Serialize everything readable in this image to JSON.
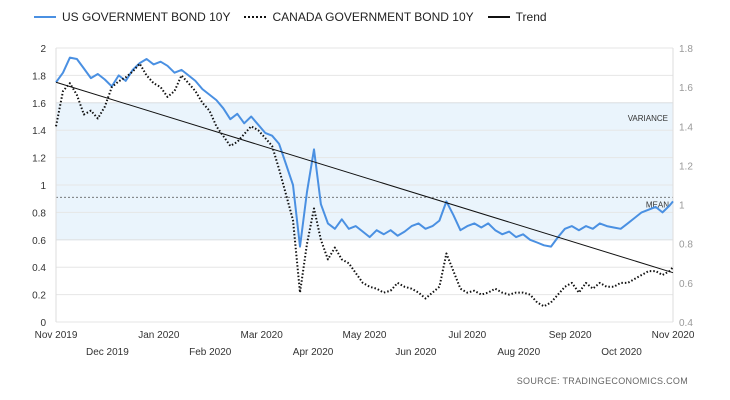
{
  "chart_data": {
    "type": "line",
    "legend": [
      {
        "label": "US GOVERNMENT BOND 10Y",
        "color": "#4a90e2",
        "style": "solid"
      },
      {
        "label": "CANADA GOVERNMENT BOND 10Y",
        "color": "#111111",
        "style": "dotted"
      },
      {
        "label": "Trend",
        "color": "#111111",
        "style": "solid"
      }
    ],
    "left_axis": {
      "min": 0,
      "max": 2,
      "ticks": [
        0,
        0.2,
        0.4,
        0.6,
        0.8,
        1,
        1.2,
        1.4,
        1.6,
        1.8,
        2
      ]
    },
    "right_axis": {
      "min": 0.4,
      "max": 1.8,
      "ticks": [
        0.4,
        0.6,
        0.8,
        1,
        1.2,
        1.4,
        1.6,
        1.8
      ]
    },
    "x_ticks_row1": [
      "Nov 2019",
      "Jan 2020",
      "Mar 2020",
      "May 2020",
      "Jul 2020",
      "Sep 2020",
      "Nov 2020"
    ],
    "x_ticks_row2": [
      "Dec 2019",
      "Feb 2020",
      "Apr 2020",
      "Jun 2020",
      "Aug 2020",
      "Oct 2020"
    ],
    "variance_band": {
      "lower": 0.6,
      "upper": 1.6,
      "label": "VARIANCE"
    },
    "mean": {
      "value": 0.91,
      "label": "MEAN"
    },
    "series": [
      {
        "name": "US GOVERNMENT BOND 10Y",
        "axis": "left",
        "color": "#4a90e2",
        "points": [
          [
            0,
            1.75
          ],
          [
            2,
            1.82
          ],
          [
            4,
            1.93
          ],
          [
            6,
            1.92
          ],
          [
            8,
            1.85
          ],
          [
            10,
            1.78
          ],
          [
            12,
            1.81
          ],
          [
            14,
            1.77
          ],
          [
            16,
            1.72
          ],
          [
            18,
            1.8
          ],
          [
            20,
            1.76
          ],
          [
            22,
            1.84
          ],
          [
            24,
            1.89
          ],
          [
            26,
            1.92
          ],
          [
            28,
            1.88
          ],
          [
            30,
            1.9
          ],
          [
            32,
            1.87
          ],
          [
            34,
            1.82
          ],
          [
            36,
            1.84
          ],
          [
            38,
            1.8
          ],
          [
            40,
            1.76
          ],
          [
            42,
            1.7
          ],
          [
            44,
            1.66
          ],
          [
            46,
            1.62
          ],
          [
            48,
            1.56
          ],
          [
            50,
            1.48
          ],
          [
            52,
            1.52
          ],
          [
            54,
            1.45
          ],
          [
            56,
            1.5
          ],
          [
            58,
            1.44
          ],
          [
            60,
            1.38
          ],
          [
            62,
            1.36
          ],
          [
            64,
            1.3
          ],
          [
            66,
            1.15
          ],
          [
            68,
            1.0
          ],
          [
            70,
            0.55
          ],
          [
            72,
            0.95
          ],
          [
            74,
            1.26
          ],
          [
            76,
            0.86
          ],
          [
            78,
            0.72
          ],
          [
            80,
            0.68
          ],
          [
            82,
            0.75
          ],
          [
            84,
            0.68
          ],
          [
            86,
            0.7
          ],
          [
            88,
            0.66
          ],
          [
            90,
            0.62
          ],
          [
            92,
            0.67
          ],
          [
            94,
            0.64
          ],
          [
            96,
            0.67
          ],
          [
            98,
            0.63
          ],
          [
            100,
            0.66
          ],
          [
            102,
            0.7
          ],
          [
            104,
            0.72
          ],
          [
            106,
            0.68
          ],
          [
            108,
            0.7
          ],
          [
            110,
            0.74
          ],
          [
            112,
            0.88
          ],
          [
            114,
            0.78
          ],
          [
            116,
            0.67
          ],
          [
            118,
            0.7
          ],
          [
            120,
            0.72
          ],
          [
            122,
            0.69
          ],
          [
            124,
            0.72
          ],
          [
            126,
            0.67
          ],
          [
            128,
            0.64
          ],
          [
            130,
            0.66
          ],
          [
            132,
            0.62
          ],
          [
            134,
            0.64
          ],
          [
            136,
            0.6
          ],
          [
            138,
            0.58
          ],
          [
            140,
            0.56
          ],
          [
            142,
            0.55
          ],
          [
            144,
            0.62
          ],
          [
            146,
            0.68
          ],
          [
            148,
            0.7
          ],
          [
            150,
            0.67
          ],
          [
            152,
            0.7
          ],
          [
            154,
            0.68
          ],
          [
            156,
            0.72
          ],
          [
            158,
            0.7
          ],
          [
            160,
            0.69
          ],
          [
            162,
            0.68
          ],
          [
            164,
            0.72
          ],
          [
            166,
            0.76
          ],
          [
            168,
            0.8
          ],
          [
            170,
            0.82
          ],
          [
            172,
            0.84
          ],
          [
            174,
            0.8
          ],
          [
            176,
            0.85
          ],
          [
            177,
            0.88
          ]
        ]
      },
      {
        "name": "CANADA GOVERNMENT BOND 10Y",
        "axis": "right",
        "color": "#111111",
        "points": [
          [
            0,
            1.4
          ],
          [
            2,
            1.58
          ],
          [
            4,
            1.62
          ],
          [
            6,
            1.56
          ],
          [
            8,
            1.46
          ],
          [
            10,
            1.48
          ],
          [
            12,
            1.44
          ],
          [
            14,
            1.5
          ],
          [
            16,
            1.6
          ],
          [
            18,
            1.63
          ],
          [
            20,
            1.65
          ],
          [
            22,
            1.68
          ],
          [
            24,
            1.72
          ],
          [
            26,
            1.66
          ],
          [
            28,
            1.62
          ],
          [
            30,
            1.6
          ],
          [
            32,
            1.55
          ],
          [
            34,
            1.58
          ],
          [
            36,
            1.66
          ],
          [
            38,
            1.62
          ],
          [
            40,
            1.58
          ],
          [
            42,
            1.52
          ],
          [
            44,
            1.48
          ],
          [
            46,
            1.4
          ],
          [
            48,
            1.35
          ],
          [
            50,
            1.3
          ],
          [
            52,
            1.32
          ],
          [
            54,
            1.36
          ],
          [
            56,
            1.4
          ],
          [
            58,
            1.38
          ],
          [
            60,
            1.34
          ],
          [
            62,
            1.3
          ],
          [
            64,
            1.18
          ],
          [
            66,
            1.05
          ],
          [
            68,
            0.92
          ],
          [
            70,
            0.55
          ],
          [
            72,
            0.8
          ],
          [
            74,
            0.98
          ],
          [
            76,
            0.82
          ],
          [
            78,
            0.72
          ],
          [
            80,
            0.78
          ],
          [
            82,
            0.72
          ],
          [
            84,
            0.7
          ],
          [
            86,
            0.65
          ],
          [
            88,
            0.6
          ],
          [
            90,
            0.58
          ],
          [
            92,
            0.57
          ],
          [
            94,
            0.55
          ],
          [
            96,
            0.56
          ],
          [
            98,
            0.6
          ],
          [
            100,
            0.58
          ],
          [
            102,
            0.57
          ],
          [
            104,
            0.55
          ],
          [
            106,
            0.52
          ],
          [
            108,
            0.55
          ],
          [
            110,
            0.58
          ],
          [
            112,
            0.75
          ],
          [
            114,
            0.66
          ],
          [
            116,
            0.57
          ],
          [
            118,
            0.55
          ],
          [
            120,
            0.56
          ],
          [
            122,
            0.54
          ],
          [
            124,
            0.55
          ],
          [
            126,
            0.57
          ],
          [
            128,
            0.55
          ],
          [
            130,
            0.54
          ],
          [
            132,
            0.55
          ],
          [
            134,
            0.55
          ],
          [
            136,
            0.54
          ],
          [
            138,
            0.5
          ],
          [
            140,
            0.48
          ],
          [
            142,
            0.5
          ],
          [
            144,
            0.54
          ],
          [
            146,
            0.58
          ],
          [
            148,
            0.6
          ],
          [
            150,
            0.55
          ],
          [
            152,
            0.6
          ],
          [
            154,
            0.57
          ],
          [
            156,
            0.6
          ],
          [
            158,
            0.58
          ],
          [
            160,
            0.58
          ],
          [
            162,
            0.6
          ],
          [
            164,
            0.6
          ],
          [
            166,
            0.62
          ],
          [
            168,
            0.64
          ],
          [
            170,
            0.66
          ],
          [
            172,
            0.66
          ],
          [
            174,
            0.64
          ],
          [
            176,
            0.66
          ],
          [
            177,
            0.68
          ]
        ]
      }
    ],
    "trend": {
      "axis": "left",
      "points": [
        [
          0,
          1.75
        ],
        [
          177,
          0.36
        ]
      ]
    },
    "x_range": [
      0,
      177
    ]
  },
  "source": "SOURCE:  TRADINGECONOMICS.COM"
}
